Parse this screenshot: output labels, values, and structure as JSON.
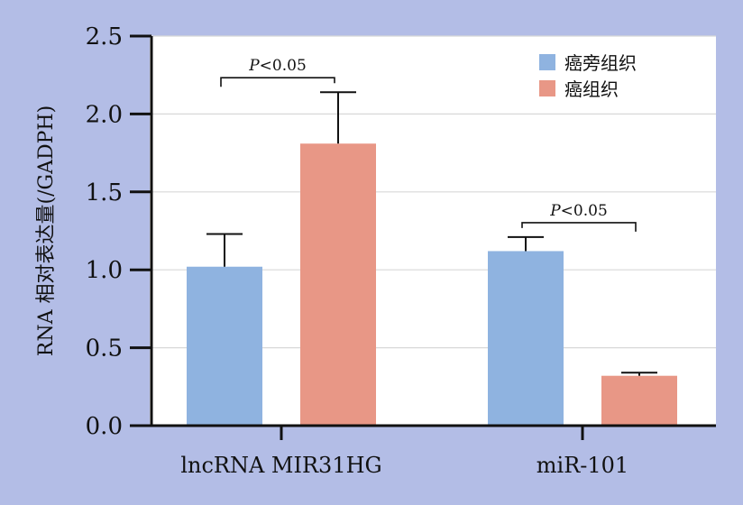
{
  "chart_data": {
    "type": "bar",
    "title": "",
    "xlabel": "",
    "ylabel": "RNA 相对表达量(/GADPH)",
    "ylim": [
      0,
      2.5
    ],
    "yticks": [
      "0.0",
      "0.5",
      "1.0",
      "1.5",
      "2.0",
      "2.5"
    ],
    "grid": true,
    "legend_position": "top-right",
    "categories": [
      "lncRNA MIR31HG",
      "miR-101"
    ],
    "series": [
      {
        "name": "癌旁组织",
        "color": "#8fb3e0",
        "values": [
          1.02,
          1.12
        ],
        "errors": [
          0.21,
          0.09
        ]
      },
      {
        "name": "癌组织",
        "color": "#e89786",
        "values": [
          1.81,
          0.32
        ],
        "errors": [
          0.33,
          0.02
        ]
      }
    ],
    "annotations": [
      {
        "category_index": 0,
        "text": "P<0.05"
      },
      {
        "category_index": 1,
        "text": "P<0.05"
      }
    ]
  }
}
